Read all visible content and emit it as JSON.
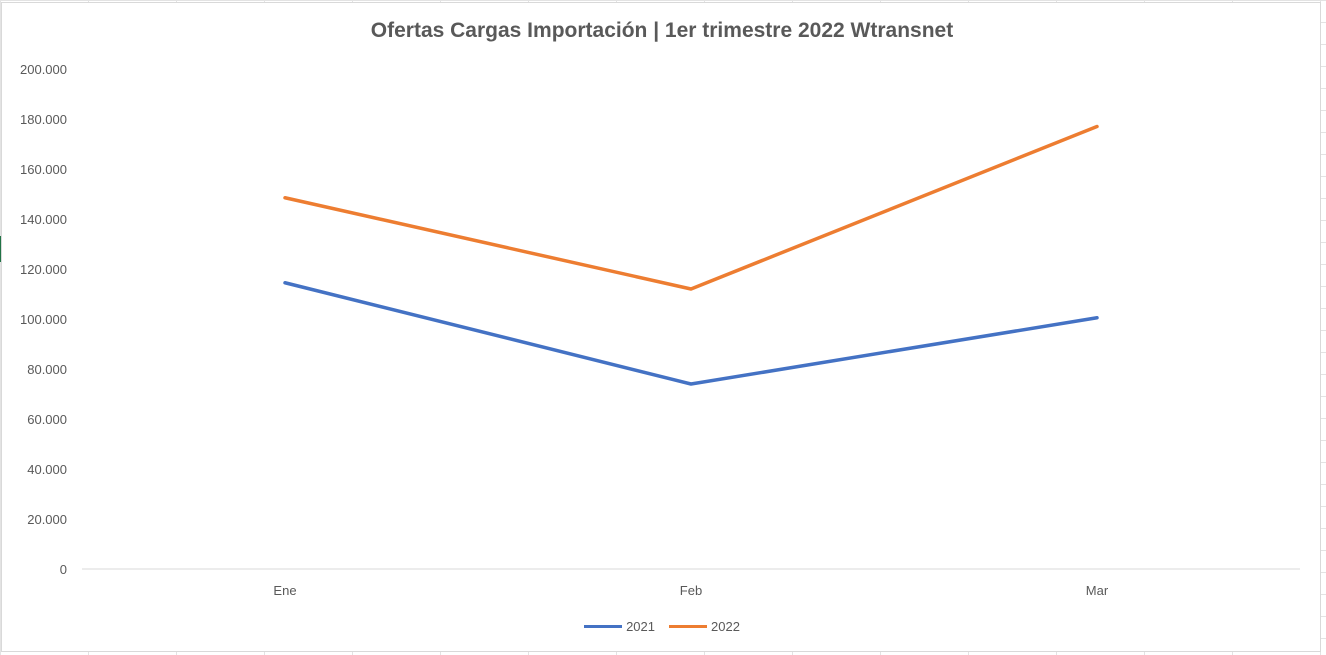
{
  "chart_data": {
    "type": "line",
    "title": "Ofertas Cargas Importación | 1er trimestre 2022 Wtransnet",
    "xlabel": "",
    "ylabel": "",
    "categories": [
      "Ene",
      "Feb",
      "Mar"
    ],
    "ylim": [
      0,
      200000
    ],
    "yticks": [
      0,
      20000,
      40000,
      60000,
      80000,
      100000,
      120000,
      140000,
      160000,
      180000,
      200000
    ],
    "ytick_labels": [
      "0",
      "20.000",
      "40.000",
      "60.000",
      "80.000",
      "100.000",
      "120.000",
      "140.000",
      "160.000",
      "180.000",
      "200.000"
    ],
    "grid": false,
    "legend_position": "bottom",
    "series": [
      {
        "name": "2021",
        "color": "#4472C4",
        "values": [
          114500,
          74000,
          100500
        ]
      },
      {
        "name": "2022",
        "color": "#ED7D31",
        "values": [
          148500,
          112000,
          177000
        ]
      }
    ]
  }
}
